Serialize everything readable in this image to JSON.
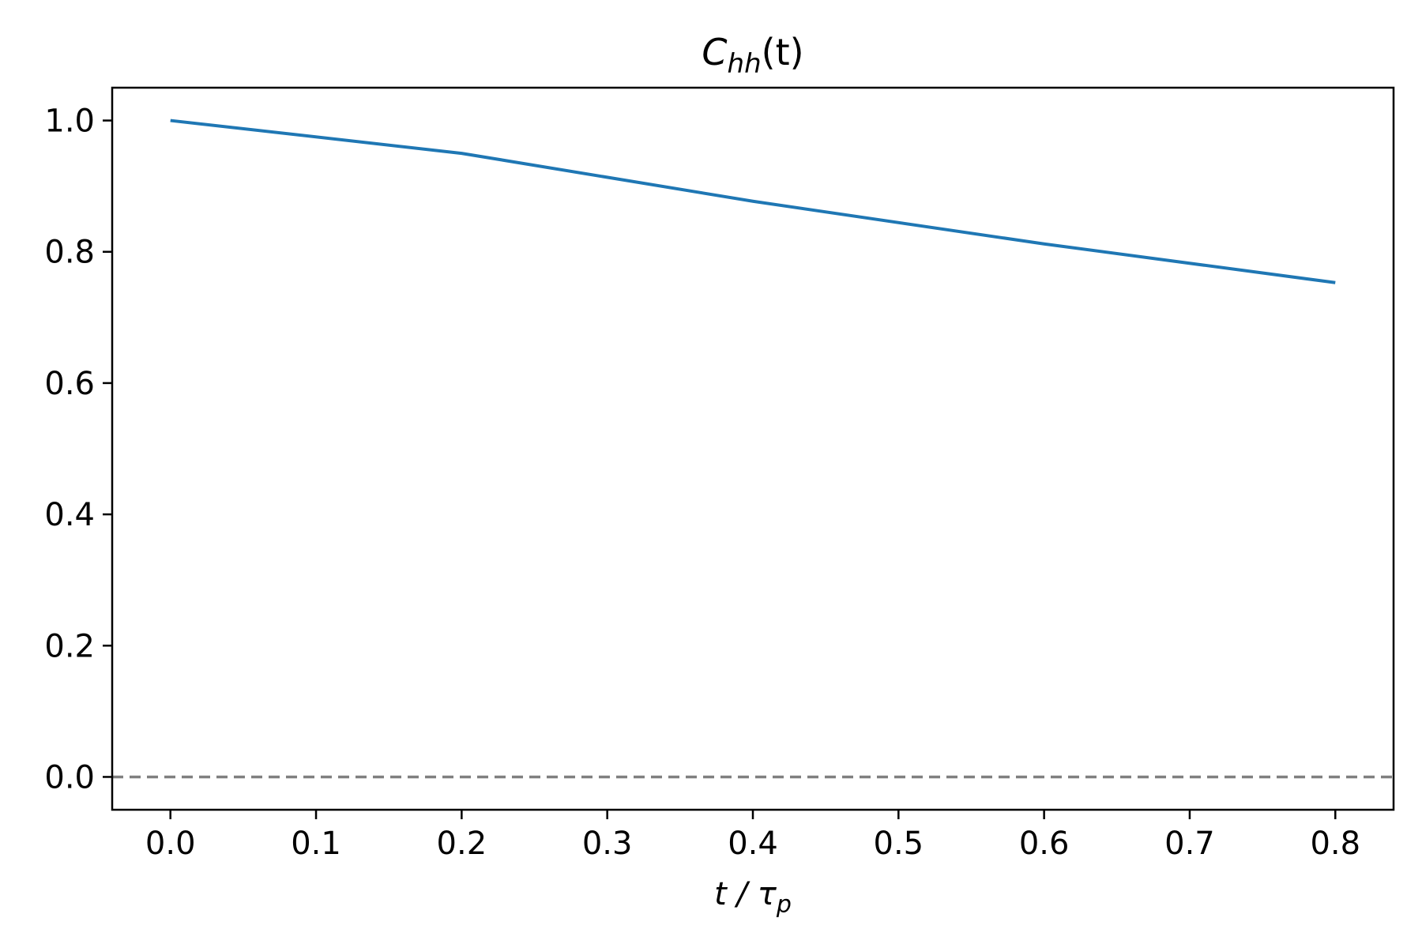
{
  "chart_data": {
    "type": "line",
    "title": {
      "main": "C",
      "sub": "hh",
      "suffix": "(t)"
    },
    "xlabel": {
      "main": "t / τ",
      "sub": "p"
    },
    "ylabel": "",
    "xlim": [
      -0.04,
      0.84
    ],
    "ylim": [
      -0.05,
      1.05
    ],
    "xticks": [
      0.0,
      0.1,
      0.2,
      0.3,
      0.4,
      0.5,
      0.6,
      0.7,
      0.8
    ],
    "xtick_labels": [
      "0.0",
      "0.1",
      "0.2",
      "0.3",
      "0.4",
      "0.5",
      "0.6",
      "0.7",
      "0.8"
    ],
    "yticks": [
      0.0,
      0.2,
      0.4,
      0.6,
      0.8,
      1.0
    ],
    "ytick_labels": [
      "0.0",
      "0.2",
      "0.4",
      "0.6",
      "0.8",
      "1.0"
    ],
    "grid": false,
    "series": [
      {
        "x": [
          0.0,
          0.2,
          0.4,
          0.6,
          0.8
        ],
        "y": [
          1.0,
          0.95,
          0.877,
          0.812,
          0.753
        ],
        "color": "#1f77b4",
        "style": "solid"
      }
    ],
    "reference_lines": [
      {
        "orientation": "horizontal",
        "y": 0.0,
        "color": "#808080",
        "style": "dashed"
      }
    ]
  }
}
